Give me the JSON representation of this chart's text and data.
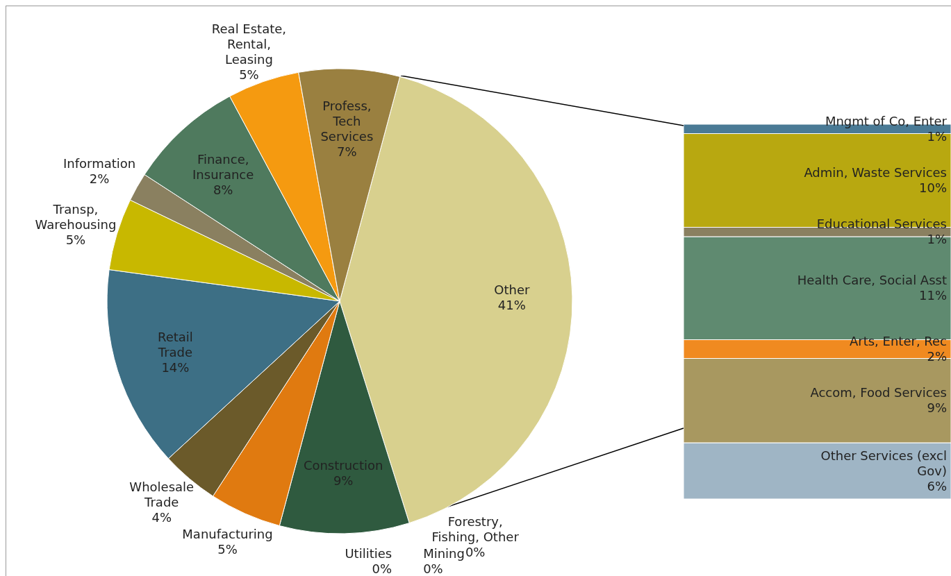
{
  "chart_data": [
    {
      "type": "pie",
      "categories": [
        "Other",
        "Forestry, Fishing, Other",
        "Mining",
        "Utilities",
        "Construction",
        "Manufacturing",
        "Wholesale Trade",
        "Retail Trade",
        "Transp, Warehousing",
        "Information",
        "Finance, Insurance",
        "Real Estate, Rental, Leasing",
        "Profess, Tech Services"
      ],
      "values": [
        41,
        0,
        0,
        0,
        9,
        5,
        4,
        14,
        5,
        2,
        8,
        5,
        7
      ],
      "value_labels": [
        "41%",
        "0%",
        "0%",
        "0%",
        "9%",
        "5%",
        "4%",
        "14%",
        "5%",
        "2%",
        "8%",
        "5%",
        "7%"
      ],
      "colors": [
        "#d8d08e",
        "#3a6e8a",
        "#6a8a9a",
        "#5a7a8a",
        "#2f5a3f",
        "#e07a10",
        "#6b5a2a",
        "#3d6f85",
        "#c8b800",
        "#8a8060",
        "#4f7a5e",
        "#f59a10",
        "#9a8040"
      ]
    },
    {
      "type": "bar",
      "stacked": true,
      "categories": [
        null
      ],
      "tick_labels": false,
      "series": [
        {
          "name": "Other Services (excl Gov)",
          "color": "#9fb5c5",
          "values": [
            6
          ],
          "value_labels": [
            "6%"
          ]
        },
        {
          "name": "Accom, Food Services",
          "color": "#a89860",
          "values": [
            9
          ],
          "value_labels": [
            "9%"
          ]
        },
        {
          "name": "Arts, Enter, Rec",
          "color": "#f08a20",
          "values": [
            2
          ],
          "value_labels": [
            "2%"
          ]
        },
        {
          "name": "Health Care, Social Asst",
          "color": "#5f8a70",
          "values": [
            11
          ],
          "value_labels": [
            "11%"
          ]
        },
        {
          "name": "Educational Services",
          "color": "#8a8060",
          "values": [
            1
          ],
          "value_labels": [
            "1%"
          ]
        },
        {
          "name": "Admin, Waste Services",
          "color": "#b8a810",
          "values": [
            10
          ],
          "value_labels": [
            "10%"
          ]
        },
        {
          "name": "Mngmt of Co, Enter",
          "color": "#4a7a95",
          "values": [
            1
          ],
          "value_labels": [
            "1%"
          ]
        }
      ]
    }
  ]
}
